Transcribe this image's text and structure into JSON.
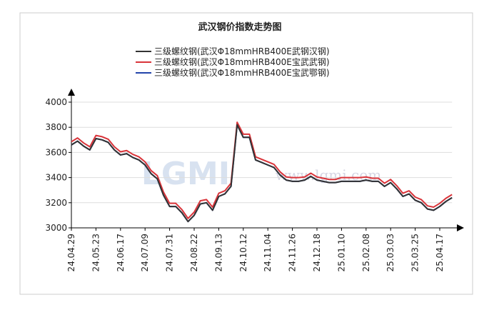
{
  "chart_data": {
    "type": "line",
    "title": "武汉钢价指数走势图",
    "watermark": [
      "LGMI",
      "www.lgmi.com"
    ],
    "categories": [
      "24.04.29",
      null,
      null,
      null,
      "24.05.23",
      null,
      null,
      null,
      "24.06.17",
      null,
      null,
      null,
      "24.07.09",
      null,
      null,
      null,
      "24.07.31",
      null,
      null,
      null,
      "24.08.22",
      null,
      null,
      null,
      "24.09.13",
      null,
      null,
      null,
      "24.10.12",
      null,
      null,
      null,
      "24.11.04",
      null,
      null,
      null,
      "24.11.26",
      null,
      null,
      null,
      "24.12.18",
      null,
      null,
      null,
      "25.01.10",
      null,
      null,
      null,
      "25.02.08",
      null,
      null,
      null,
      "25.03.03",
      null,
      null,
      null,
      "25.03.25",
      null,
      null,
      null,
      "25.04.17",
      null,
      null
    ],
    "series": [
      {
        "name": "三级螺纹钢(武汉Φ18mmHRB400E宝武鄂钢)",
        "color": "#2244aa",
        "values": [
          3660,
          3690,
          3650,
          3620,
          3710,
          3700,
          3680,
          3620,
          3580,
          3590,
          3560,
          3540,
          3500,
          3430,
          3390,
          3260,
          3170,
          3170,
          3120,
          3050,
          3100,
          3190,
          3200,
          3140,
          3250,
          3270,
          3330,
          3820,
          3720,
          3720,
          3540,
          3520,
          3500,
          3480,
          3420,
          3380,
          3370,
          3370,
          3380,
          3410,
          3380,
          3370,
          3360,
          3360,
          3370,
          3370,
          3370,
          3370,
          3380,
          3370,
          3370,
          3330,
          3360,
          3310,
          3250,
          3270,
          3220,
          3200,
          3150,
          3140,
          3170,
          3210,
          3240
        ]
      },
      {
        "name": "三级螺纹钢(武汉Φ18mmHRB400E宝武武钢)",
        "color": "#d9343a",
        "values": [
          3685,
          3715,
          3675,
          3645,
          3735,
          3725,
          3705,
          3645,
          3605,
          3615,
          3585,
          3565,
          3525,
          3455,
          3415,
          3285,
          3195,
          3195,
          3145,
          3075,
          3125,
          3215,
          3225,
          3165,
          3275,
          3295,
          3355,
          3840,
          3745,
          3745,
          3565,
          3545,
          3525,
          3505,
          3445,
          3405,
          3400,
          3400,
          3405,
          3435,
          3405,
          3395,
          3385,
          3385,
          3400,
          3400,
          3400,
          3400,
          3405,
          3395,
          3395,
          3355,
          3385,
          3335,
          3275,
          3295,
          3245,
          3225,
          3175,
          3165,
          3195,
          3235,
          3265
        ]
      },
      {
        "name": "三级螺纹钢(武汉Φ18mmHRB400E武钢汉钢)",
        "color": "#333333",
        "values": [
          3660,
          3690,
          3650,
          3620,
          3710,
          3700,
          3680,
          3620,
          3580,
          3590,
          3560,
          3540,
          3500,
          3430,
          3390,
          3260,
          3170,
          3170,
          3120,
          3050,
          3100,
          3190,
          3200,
          3140,
          3250,
          3270,
          3330,
          3820,
          3720,
          3720,
          3540,
          3520,
          3500,
          3480,
          3420,
          3380,
          3370,
          3370,
          3380,
          3410,
          3380,
          3370,
          3360,
          3360,
          3370,
          3370,
          3370,
          3370,
          3380,
          3370,
          3370,
          3330,
          3360,
          3310,
          3250,
          3270,
          3220,
          3200,
          3150,
          3140,
          3170,
          3210,
          3240
        ]
      }
    ],
    "legend_order": [
      2,
      1,
      0
    ],
    "ylim": [
      3000,
      4000
    ],
    "yticks": [
      3000,
      3200,
      3400,
      3600,
      3800,
      4000
    ],
    "grid": true
  }
}
